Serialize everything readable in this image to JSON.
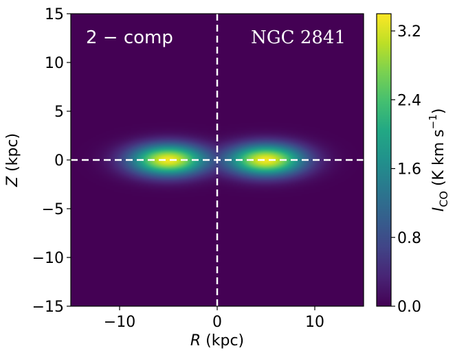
{
  "chart_data": {
    "type": "heatmap",
    "title": "",
    "xlabel_var": "R",
    "xlabel_unit": " (kpc)",
    "ylabel_var": "Z",
    "ylabel_unit": " (kpc)",
    "xlim": [
      -15,
      15
    ],
    "ylim": [
      -15,
      15
    ],
    "xticks": [
      -10,
      0,
      10
    ],
    "xtick_labels": [
      "−10",
      "0",
      "10"
    ],
    "yticks": [
      -15,
      -10,
      -5,
      0,
      5,
      10,
      15
    ],
    "ytick_labels": [
      "−15",
      "−10",
      "−5",
      "0",
      "5",
      "10",
      "15"
    ],
    "colormap": "viridis",
    "colorbar": {
      "label_var": "I",
      "label_sub": "CO",
      "label_unit_open": " (K km s",
      "label_unit_sup": "−1",
      "label_unit_close": ")",
      "range": [
        0.0,
        3.4
      ],
      "ticks": [
        0.0,
        0.8,
        1.6,
        2.4,
        3.2
      ],
      "tick_labels": [
        "0.0",
        "0.8",
        "1.6",
        "2.4",
        "3.2"
      ]
    },
    "model": {
      "description": "two-component ring (2 - comp)",
      "peak_intensity": 3.35,
      "ring_radius_kpc": 5.0,
      "ring_radial_sigma_kpc": 2.7,
      "central_radius_kpc": 0.0,
      "central_peak_intensity": 0.15,
      "vertical_sigma_kpc": 1.1
    },
    "reference_lines": [
      {
        "axis": "x",
        "value": 0,
        "style": "dashed",
        "color": "#ffffff"
      },
      {
        "axis": "y",
        "value": 0,
        "style": "dashed",
        "color": "#ffffff"
      }
    ],
    "annotations": [
      {
        "text": "2 − comp",
        "position": "top-left"
      },
      {
        "text": "NGC 2841",
        "position": "top-right"
      }
    ]
  },
  "colors": {
    "background": "#440154",
    "line": "#ffffff"
  }
}
